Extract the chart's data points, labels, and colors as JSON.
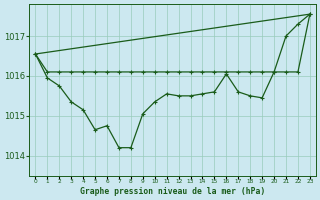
{
  "xlabel": "Graphe pression niveau de la mer (hPa)",
  "xlim": [
    -0.5,
    23.5
  ],
  "ylim": [
    1013.5,
    1017.8
  ],
  "yticks": [
    1014,
    1015,
    1016,
    1017
  ],
  "xticks": [
    0,
    1,
    2,
    3,
    4,
    5,
    6,
    7,
    8,
    9,
    10,
    11,
    12,
    13,
    14,
    15,
    16,
    17,
    18,
    19,
    20,
    21,
    22,
    23
  ],
  "bg_color": "#cce8f0",
  "grid_color": "#99ccbb",
  "line_color": "#1a5c1a",
  "line1_x": [
    0,
    1,
    2,
    3,
    4,
    5,
    6,
    7,
    8,
    9,
    10,
    11,
    12,
    13,
    14,
    15,
    16,
    17,
    18,
    19,
    20,
    21,
    22,
    23
  ],
  "line1_y": [
    1016.55,
    1016.1,
    1016.1,
    1016.1,
    1016.1,
    1016.1,
    1016.1,
    1016.1,
    1016.1,
    1016.1,
    1016.1,
    1016.1,
    1016.1,
    1016.1,
    1016.1,
    1016.1,
    1016.1,
    1016.1,
    1016.1,
    1016.1,
    1016.1,
    1016.1,
    1016.1,
    1017.55
  ],
  "line2_x": [
    0,
    23
  ],
  "line2_y": [
    1016.55,
    1017.55
  ],
  "line3_x": [
    0,
    1,
    2,
    3,
    4,
    5,
    6,
    7,
    8,
    9,
    10,
    11,
    12,
    13,
    14,
    15,
    16,
    17,
    18,
    19,
    20,
    21,
    22,
    23
  ],
  "line3_y": [
    1016.55,
    1015.95,
    1015.75,
    1015.35,
    1015.15,
    1014.65,
    1014.75,
    1014.2,
    1014.2,
    1015.05,
    1015.35,
    1015.55,
    1015.5,
    1015.5,
    1015.55,
    1015.6,
    1016.05,
    1015.6,
    1015.5,
    1015.45,
    1016.1,
    1017.0,
    1017.3,
    1017.55
  ]
}
